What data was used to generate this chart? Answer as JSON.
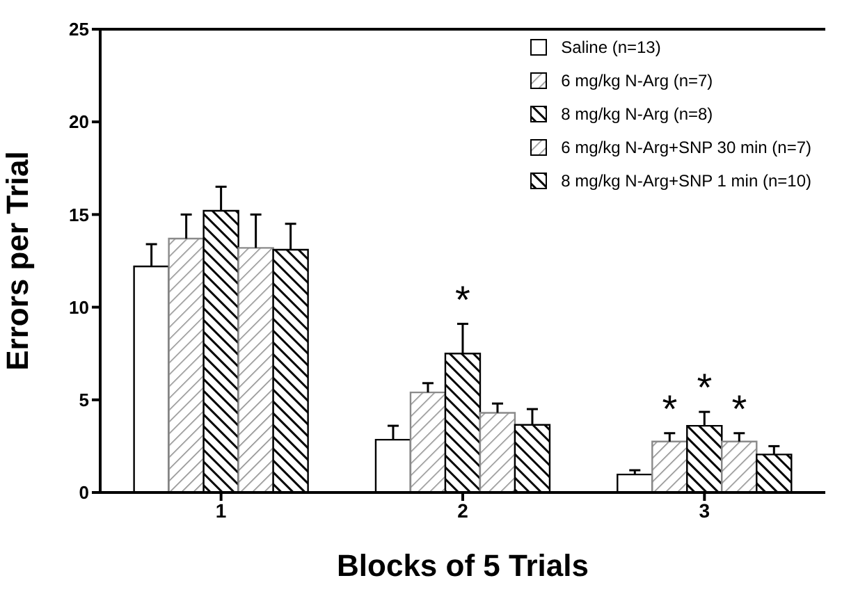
{
  "chart_data": {
    "type": "bar",
    "xlabel": "Blocks of 5 Trials",
    "ylabel": "Errors per Trial",
    "categories": [
      "1",
      "2",
      "3"
    ],
    "series": [
      {
        "name": "Saline (n=13)",
        "color": "#ffffff",
        "values": [
          12.2,
          2.85,
          0.97
        ],
        "errors": [
          [
            12.2,
            13.4
          ],
          [
            2.85,
            3.6
          ],
          [
            0.97,
            1.2
          ]
        ]
      },
      {
        "name": "6 mg/kg N-Arg (n=7)",
        "color": "#8a8a8a",
        "values": [
          13.7,
          5.4,
          2.75
        ],
        "errors": [
          [
            13.7,
            15.0
          ],
          [
            5.4,
            5.9
          ],
          [
            2.75,
            3.2
          ]
        ]
      },
      {
        "name": "8 mg/kg N-Arg (n=8)",
        "color": "#000000",
        "values": [
          15.2,
          7.5,
          3.6
        ],
        "errors": [
          [
            15.2,
            16.5
          ],
          [
            7.5,
            9.1
          ],
          [
            3.6,
            4.35
          ]
        ]
      },
      {
        "name": "6 mg/kg N-Arg+SNP 30 min (n=7)",
        "color": "#8a8a8a",
        "values": [
          13.2,
          4.3,
          2.75
        ],
        "errors": [
          [
            13.2,
            15.0
          ],
          [
            4.3,
            4.8
          ],
          [
            2.75,
            3.2
          ]
        ]
      },
      {
        "name": "8 mg/kg N-Arg+SNP 1 min (n=10)",
        "color": "#000000",
        "values": [
          13.1,
          3.65,
          2.05
        ],
        "errors": [
          [
            13.1,
            14.5
          ],
          [
            3.65,
            4.5
          ],
          [
            2.05,
            2.5
          ]
        ]
      }
    ],
    "ylim": [
      0,
      25
    ],
    "yticks": [
      0,
      5,
      10,
      15,
      20,
      25
    ],
    "grid": false,
    "legend": "top right",
    "annotations": [
      {
        "text": "*",
        "x": "2",
        "y": 9.1
      },
      {
        "text": "*",
        "x": "3",
        "y": 4.35
      },
      {
        "text": "*",
        "x": "3",
        "y": 3.2
      },
      {
        "text": "*",
        "x": "3",
        "y": 3.2
      }
    ]
  }
}
